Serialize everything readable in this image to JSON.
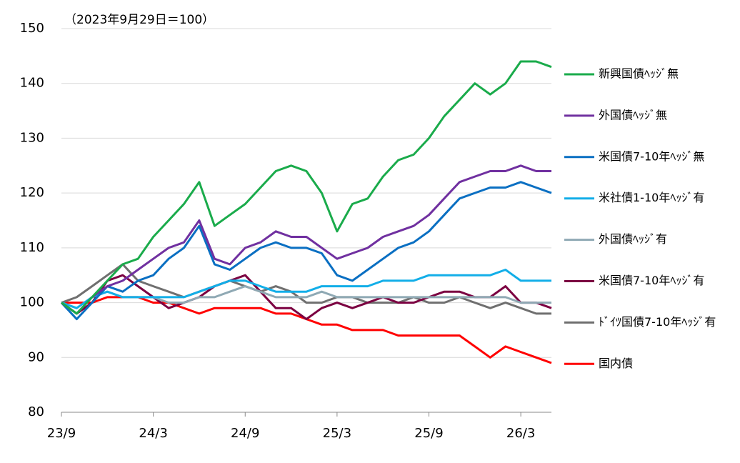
{
  "chart_data": {
    "type": "line",
    "annotation": "（2023年9月29日＝100）",
    "categories": [
      "23/9",
      null,
      null,
      null,
      null,
      null,
      "24/3",
      null,
      null,
      null,
      null,
      null,
      "24/9",
      null,
      null,
      null,
      null,
      null,
      "25/3",
      null,
      null,
      null,
      null,
      null,
      "25/9",
      null,
      null,
      null,
      null,
      null,
      "26/3",
      null,
      null
    ],
    "ylim": [
      80,
      150
    ],
    "yticks": [
      80,
      90,
      100,
      110,
      120,
      130,
      140,
      150
    ],
    "grid": true,
    "series": [
      {
        "name": "新興国債ﾍｯｼﾞ無",
        "color": "#1aab4b",
        "values": [
          100,
          98,
          101,
          104,
          107,
          108,
          112,
          115,
          118,
          122,
          114,
          116,
          118,
          121,
          124,
          125,
          124,
          120,
          113,
          118,
          119,
          123,
          126,
          127,
          130,
          134,
          137,
          140,
          138,
          140,
          144,
          144,
          143
        ]
      },
      {
        "name": "外国債ﾍｯｼﾞ無",
        "color": "#7030a0",
        "values": [
          100,
          98,
          101,
          103,
          104,
          106,
          108,
          110,
          111,
          115,
          108,
          107,
          110,
          111,
          113,
          112,
          112,
          110,
          108,
          109,
          110,
          112,
          113,
          114,
          116,
          119,
          122,
          123,
          124,
          124,
          125,
          124,
          124
        ]
      },
      {
        "name": "米国債7-10年ﾍｯｼﾞ無",
        "color": "#0a6fc2",
        "values": [
          100,
          97,
          100,
          103,
          102,
          104,
          105,
          108,
          110,
          114,
          107,
          106,
          108,
          110,
          111,
          110,
          110,
          109,
          105,
          104,
          106,
          108,
          110,
          111,
          113,
          116,
          119,
          120,
          121,
          121,
          122,
          121,
          120
        ]
      },
      {
        "name": "米社債1-10年ﾍｯｼﾞ有",
        "color": "#12aee8",
        "values": [
          100,
          99,
          101,
          102,
          101,
          101,
          101,
          101,
          101,
          102,
          103,
          104,
          104,
          103,
          102,
          102,
          102,
          103,
          103,
          103,
          103,
          104,
          104,
          104,
          105,
          105,
          105,
          105,
          105,
          106,
          104,
          104,
          104
        ]
      },
      {
        "name": "外国債ﾍｯｼﾞ有",
        "color": "#8fa9b4",
        "values": [
          100,
          99,
          101,
          102,
          101,
          101,
          101,
          100,
          100,
          101,
          101,
          102,
          103,
          102,
          101,
          101,
          101,
          102,
          101,
          101,
          101,
          101,
          101,
          101,
          101,
          101,
          101,
          101,
          101,
          101,
          100,
          100,
          100
        ]
      },
      {
        "name": "米国債7-10年ﾍｯｼﾞ有",
        "color": "#7b0041",
        "values": [
          100,
          98,
          100,
          104,
          105,
          103,
          101,
          99,
          100,
          101,
          103,
          104,
          105,
          102,
          99,
          99,
          97,
          99,
          100,
          99,
          100,
          101,
          100,
          100,
          101,
          102,
          102,
          101,
          101,
          103,
          100,
          100,
          99
        ]
      },
      {
        "name": "ﾄﾞｲﾂ国債7-10年ﾍｯｼﾞ有",
        "color": "#6f6f6f",
        "values": [
          100,
          101,
          103,
          105,
          107,
          104,
          103,
          102,
          101,
          102,
          103,
          104,
          103,
          102,
          103,
          102,
          100,
          100,
          101,
          101,
          100,
          100,
          100,
          101,
          100,
          100,
          101,
          100,
          99,
          100,
          99,
          98,
          98
        ]
      },
      {
        "name": "国内債",
        "color": "#ff0000",
        "values": [
          100,
          100,
          100,
          101,
          101,
          101,
          100,
          100,
          99,
          98,
          99,
          99,
          99,
          99,
          98,
          98,
          97,
          96,
          96,
          95,
          95,
          95,
          94,
          94,
          94,
          94,
          94,
          92,
          90,
          92,
          91,
          90,
          89
        ]
      }
    ]
  }
}
